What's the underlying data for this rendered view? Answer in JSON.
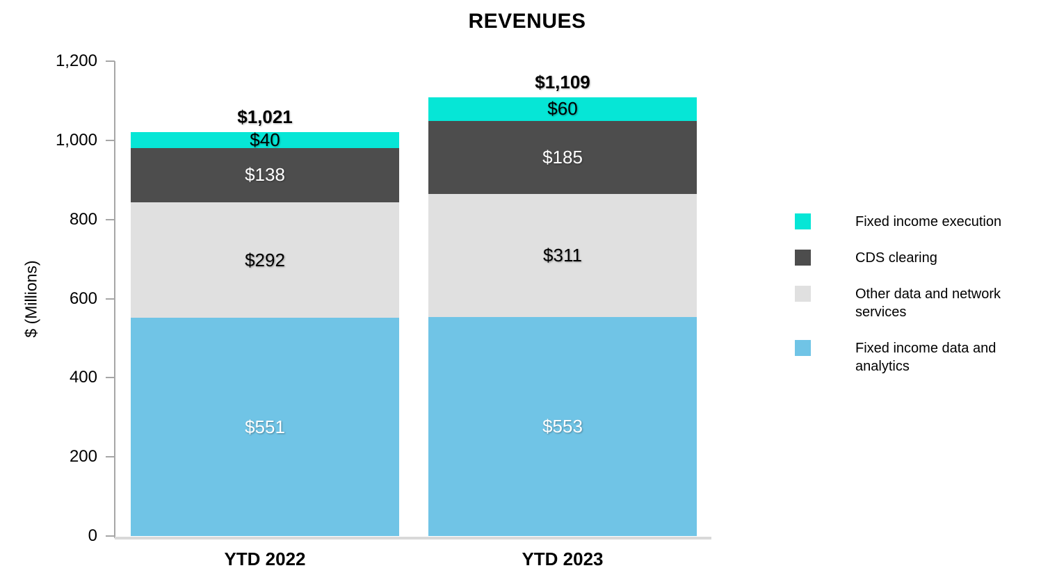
{
  "chart_data": {
    "type": "bar",
    "stacked": true,
    "title": "REVENUES",
    "ylabel": "$ (Millions)",
    "xlabel": "",
    "categories": [
      "YTD 2022",
      "YTD 2023"
    ],
    "series": [
      {
        "name": "Fixed income data and analytics",
        "color": "#70c4e6",
        "label_color": "#ffffff",
        "values": [
          551,
          553
        ]
      },
      {
        "name": "Other data and network services",
        "color": "#e0e0e0",
        "label_color": "#000000",
        "values": [
          292,
          311
        ]
      },
      {
        "name": "CDS clearing",
        "color": "#4d4d4d",
        "label_color": "#ffffff",
        "values": [
          138,
          185
        ]
      },
      {
        "name": "Fixed income execution",
        "color": "#06e6d6",
        "label_color": "#000000",
        "values": [
          40,
          60
        ]
      }
    ],
    "segment_labels": [
      [
        "$551",
        "$292",
        "$138",
        "$40"
      ],
      [
        "$553",
        "$311",
        "$185",
        "$60"
      ]
    ],
    "totals": [
      "$1,021",
      "$1,109"
    ],
    "total_values": [
      1021,
      1109
    ],
    "ylim": [
      0,
      1200
    ],
    "yticks": [
      "0",
      "200",
      "400",
      "600",
      "800",
      "1,000",
      "1,200"
    ],
    "grid": false,
    "legend_position": "right",
    "legend": [
      {
        "label": "Fixed income execution",
        "color": "#06e6d6"
      },
      {
        "label": "CDS clearing",
        "color": "#4d4d4d"
      },
      {
        "label": "Other data and network services",
        "color": "#e0e0e0"
      },
      {
        "label": "Fixed income data and analytics",
        "color": "#70c4e6"
      }
    ],
    "colors": {
      "axis": "#a6a6a6",
      "baseline": "#d9d9d9",
      "background": "#ffffff",
      "text": "#000000"
    }
  }
}
